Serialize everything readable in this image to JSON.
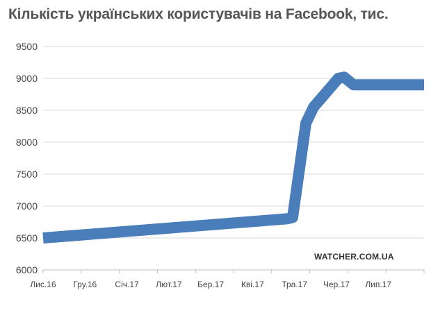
{
  "chart_data": {
    "type": "line",
    "title": "Кількість українських користувачів на Facebook, тис.",
    "xlabel": "",
    "ylabel": "",
    "categories": [
      "Лис.16",
      "Гру.16",
      "Січ.17",
      "Лют.17",
      "Бер.17",
      "Кві.17",
      "Тра.17",
      "Чер.17",
      "Лип.17"
    ],
    "x_range": [
      0,
      10
    ],
    "ylim": [
      6000,
      9500
    ],
    "yticks": [
      6000,
      6500,
      7000,
      7500,
      8000,
      8500,
      9000,
      9500
    ],
    "grid": true,
    "legend": "none",
    "series": [
      {
        "color": "#4a7ebb",
        "points": [
          {
            "x": 0.0,
            "y": 6500
          },
          {
            "x": 6.4,
            "y": 6800
          },
          {
            "x": 6.55,
            "y": 6820
          },
          {
            "x": 6.9,
            "y": 8300
          },
          {
            "x": 7.1,
            "y": 8550
          },
          {
            "x": 7.75,
            "y": 9000
          },
          {
            "x": 7.9,
            "y": 9020
          },
          {
            "x": 8.15,
            "y": 8900
          },
          {
            "x": 10.0,
            "y": 8900
          }
        ]
      }
    ],
    "annotation": "WATCHER.COM.UA"
  }
}
